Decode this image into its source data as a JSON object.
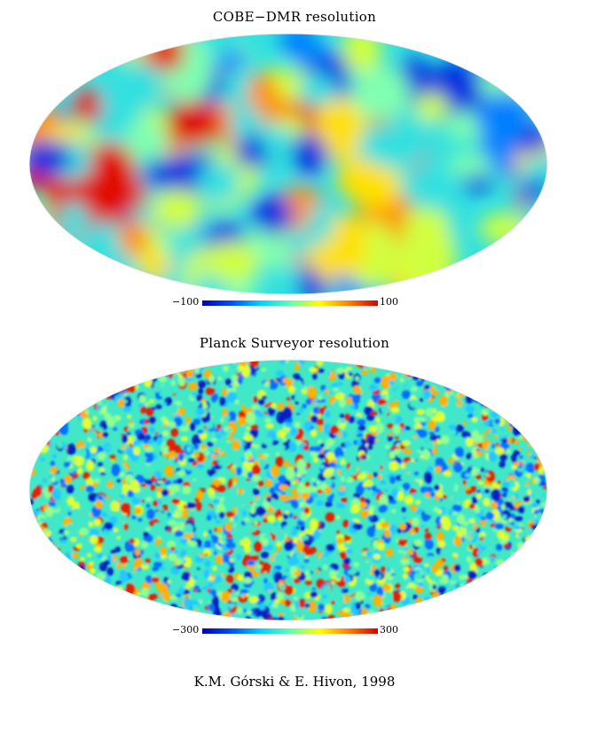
{
  "maps": [
    {
      "title": "COBE−DMR resolution",
      "scale_min": "−100",
      "scale_max": "100",
      "resolution": "coarse"
    },
    {
      "title": "Planck Surveyor resolution",
      "scale_min": "−300",
      "scale_max": "300",
      "resolution": "fine"
    }
  ],
  "colormap": [
    "#0000b4",
    "#0050ff",
    "#00d2ff",
    "#60ffb0",
    "#ffff00",
    "#ff8000",
    "#d20000"
  ],
  "credit": "K.M. Górski & E. Hivon, 1998"
}
